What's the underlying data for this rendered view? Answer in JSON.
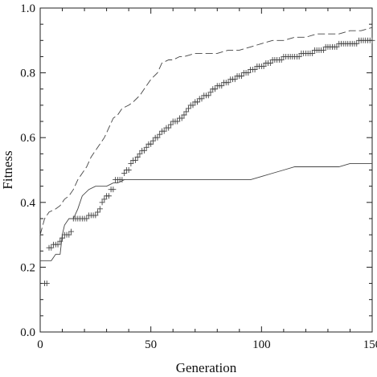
{
  "chart_data": {
    "type": "line",
    "title": "",
    "xlabel": "Generation",
    "ylabel": "Fitness",
    "xlim": [
      0,
      150
    ],
    "ylim": [
      0.0,
      1.0
    ],
    "x_ticks": [
      0,
      50,
      100,
      150
    ],
    "x_tick_labels": [
      "0",
      "50",
      "100",
      "150"
    ],
    "y_ticks": [
      0.0,
      0.2,
      0.4,
      0.6,
      0.8,
      1.0
    ],
    "y_tick_labels": [
      "0.0",
      "0.2",
      "0.4",
      "0.6",
      "0.8",
      "1.0"
    ],
    "grid": false,
    "legend": "none",
    "series": [
      {
        "style": "dashed",
        "color": "#444444",
        "points": [
          [
            0,
            0.3
          ],
          [
            2,
            0.35
          ],
          [
            4,
            0.37
          ],
          [
            7,
            0.38
          ],
          [
            9,
            0.39
          ],
          [
            11,
            0.41
          ],
          [
            13,
            0.42
          ],
          [
            15,
            0.44
          ],
          [
            17,
            0.47
          ],
          [
            19,
            0.49
          ],
          [
            21,
            0.51
          ],
          [
            23,
            0.54
          ],
          [
            25,
            0.56
          ],
          [
            27,
            0.58
          ],
          [
            29,
            0.6
          ],
          [
            31,
            0.63
          ],
          [
            33,
            0.66
          ],
          [
            35,
            0.67
          ],
          [
            37,
            0.69
          ],
          [
            40,
            0.7
          ],
          [
            42,
            0.71
          ],
          [
            45,
            0.73
          ],
          [
            48,
            0.76
          ],
          [
            50,
            0.78
          ],
          [
            53,
            0.8
          ],
          [
            55,
            0.83
          ],
          [
            58,
            0.84
          ],
          [
            60,
            0.84
          ],
          [
            63,
            0.85
          ],
          [
            65,
            0.85
          ],
          [
            70,
            0.86
          ],
          [
            75,
            0.86
          ],
          [
            80,
            0.86
          ],
          [
            85,
            0.87
          ],
          [
            90,
            0.87
          ],
          [
            95,
            0.88
          ],
          [
            100,
            0.89
          ],
          [
            105,
            0.9
          ],
          [
            110,
            0.9
          ],
          [
            115,
            0.91
          ],
          [
            120,
            0.91
          ],
          [
            125,
            0.92
          ],
          [
            130,
            0.92
          ],
          [
            135,
            0.92
          ],
          [
            140,
            0.93
          ],
          [
            145,
            0.93
          ],
          [
            150,
            0.94
          ]
        ]
      },
      {
        "style": "plus-markers",
        "color": "#444444",
        "points": [
          [
            2,
            0.15
          ],
          [
            3,
            0.15
          ],
          [
            4,
            0.26
          ],
          [
            5,
            0.26
          ],
          [
            6,
            0.27
          ],
          [
            7,
            0.27
          ],
          [
            8,
            0.27
          ],
          [
            9,
            0.28
          ],
          [
            10,
            0.29
          ],
          [
            11,
            0.3
          ],
          [
            12,
            0.3
          ],
          [
            13,
            0.3
          ],
          [
            14,
            0.31
          ],
          [
            15,
            0.35
          ],
          [
            16,
            0.35
          ],
          [
            17,
            0.35
          ],
          [
            18,
            0.35
          ],
          [
            19,
            0.35
          ],
          [
            20,
            0.35
          ],
          [
            21,
            0.35
          ],
          [
            22,
            0.36
          ],
          [
            23,
            0.36
          ],
          [
            24,
            0.36
          ],
          [
            25,
            0.36
          ],
          [
            26,
            0.37
          ],
          [
            27,
            0.38
          ],
          [
            28,
            0.4
          ],
          [
            29,
            0.41
          ],
          [
            30,
            0.42
          ],
          [
            31,
            0.42
          ],
          [
            32,
            0.44
          ],
          [
            33,
            0.44
          ],
          [
            34,
            0.47
          ],
          [
            35,
            0.47
          ],
          [
            36,
            0.47
          ],
          [
            37,
            0.47
          ],
          [
            38,
            0.49
          ],
          [
            39,
            0.5
          ],
          [
            40,
            0.5
          ],
          [
            41,
            0.52
          ],
          [
            42,
            0.53
          ],
          [
            43,
            0.53
          ],
          [
            44,
            0.54
          ],
          [
            45,
            0.55
          ],
          [
            46,
            0.56
          ],
          [
            47,
            0.56
          ],
          [
            48,
            0.57
          ],
          [
            49,
            0.58
          ],
          [
            50,
            0.58
          ],
          [
            51,
            0.59
          ],
          [
            52,
            0.6
          ],
          [
            53,
            0.6
          ],
          [
            54,
            0.61
          ],
          [
            55,
            0.62
          ],
          [
            56,
            0.62
          ],
          [
            57,
            0.63
          ],
          [
            58,
            0.63
          ],
          [
            59,
            0.64
          ],
          [
            60,
            0.65
          ],
          [
            61,
            0.65
          ],
          [
            62,
            0.65
          ],
          [
            63,
            0.66
          ],
          [
            64,
            0.66
          ],
          [
            65,
            0.67
          ],
          [
            66,
            0.68
          ],
          [
            67,
            0.69
          ],
          [
            68,
            0.7
          ],
          [
            69,
            0.7
          ],
          [
            70,
            0.71
          ],
          [
            71,
            0.71
          ],
          [
            72,
            0.72
          ],
          [
            73,
            0.72
          ],
          [
            74,
            0.73
          ],
          [
            75,
            0.73
          ],
          [
            76,
            0.73
          ],
          [
            77,
            0.74
          ],
          [
            78,
            0.75
          ],
          [
            79,
            0.75
          ],
          [
            80,
            0.76
          ],
          [
            81,
            0.76
          ],
          [
            82,
            0.76
          ],
          [
            83,
            0.77
          ],
          [
            84,
            0.77
          ],
          [
            85,
            0.77
          ],
          [
            86,
            0.78
          ],
          [
            87,
            0.78
          ],
          [
            88,
            0.78
          ],
          [
            89,
            0.79
          ],
          [
            90,
            0.79
          ],
          [
            91,
            0.79
          ],
          [
            92,
            0.8
          ],
          [
            93,
            0.8
          ],
          [
            94,
            0.8
          ],
          [
            95,
            0.81
          ],
          [
            96,
            0.81
          ],
          [
            97,
            0.81
          ],
          [
            98,
            0.82
          ],
          [
            99,
            0.82
          ],
          [
            100,
            0.82
          ],
          [
            101,
            0.82
          ],
          [
            102,
            0.83
          ],
          [
            103,
            0.83
          ],
          [
            104,
            0.83
          ],
          [
            105,
            0.84
          ],
          [
            106,
            0.84
          ],
          [
            107,
            0.84
          ],
          [
            108,
            0.84
          ],
          [
            109,
            0.84
          ],
          [
            110,
            0.85
          ],
          [
            111,
            0.85
          ],
          [
            112,
            0.85
          ],
          [
            113,
            0.85
          ],
          [
            114,
            0.85
          ],
          [
            115,
            0.85
          ],
          [
            116,
            0.85
          ],
          [
            117,
            0.85
          ],
          [
            118,
            0.86
          ],
          [
            119,
            0.86
          ],
          [
            120,
            0.86
          ],
          [
            121,
            0.86
          ],
          [
            122,
            0.86
          ],
          [
            123,
            0.86
          ],
          [
            124,
            0.87
          ],
          [
            125,
            0.87
          ],
          [
            126,
            0.87
          ],
          [
            127,
            0.87
          ],
          [
            128,
            0.87
          ],
          [
            129,
            0.88
          ],
          [
            130,
            0.88
          ],
          [
            131,
            0.88
          ],
          [
            132,
            0.88
          ],
          [
            133,
            0.88
          ],
          [
            134,
            0.88
          ],
          [
            135,
            0.89
          ],
          [
            136,
            0.89
          ],
          [
            137,
            0.89
          ],
          [
            138,
            0.89
          ],
          [
            139,
            0.89
          ],
          [
            140,
            0.89
          ],
          [
            141,
            0.89
          ],
          [
            142,
            0.89
          ],
          [
            143,
            0.89
          ],
          [
            144,
            0.9
          ],
          [
            145,
            0.9
          ],
          [
            146,
            0.9
          ],
          [
            147,
            0.9
          ],
          [
            148,
            0.9
          ],
          [
            149,
            0.9
          ],
          [
            150,
            0.9
          ]
        ]
      },
      {
        "style": "solid",
        "color": "#444444",
        "points": [
          [
            0,
            0.22
          ],
          [
            5,
            0.22
          ],
          [
            7,
            0.24
          ],
          [
            9,
            0.24
          ],
          [
            10,
            0.3
          ],
          [
            11,
            0.33
          ],
          [
            13,
            0.35
          ],
          [
            15,
            0.35
          ],
          [
            17,
            0.38
          ],
          [
            19,
            0.42
          ],
          [
            22,
            0.44
          ],
          [
            25,
            0.45
          ],
          [
            28,
            0.45
          ],
          [
            30,
            0.45
          ],
          [
            33,
            0.46
          ],
          [
            35,
            0.46
          ],
          [
            38,
            0.47
          ],
          [
            40,
            0.47
          ],
          [
            50,
            0.47
          ],
          [
            60,
            0.47
          ],
          [
            70,
            0.47
          ],
          [
            80,
            0.47
          ],
          [
            90,
            0.47
          ],
          [
            95,
            0.47
          ],
          [
            100,
            0.48
          ],
          [
            105,
            0.49
          ],
          [
            110,
            0.5
          ],
          [
            115,
            0.51
          ],
          [
            120,
            0.51
          ],
          [
            125,
            0.51
          ],
          [
            130,
            0.51
          ],
          [
            135,
            0.51
          ],
          [
            140,
            0.52
          ],
          [
            145,
            0.52
          ],
          [
            150,
            0.52
          ]
        ]
      }
    ]
  }
}
